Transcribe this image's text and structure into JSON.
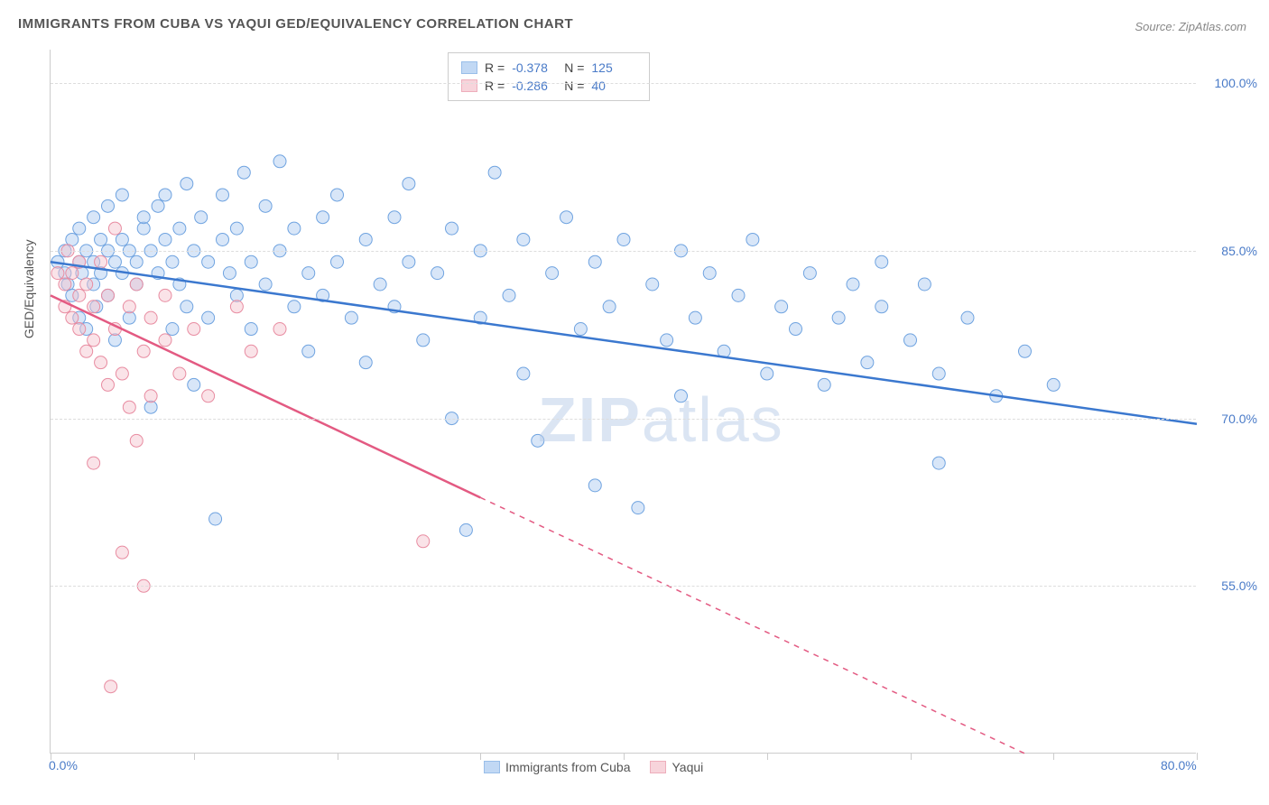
{
  "title": "IMMIGRANTS FROM CUBA VS YAQUI GED/EQUIVALENCY CORRELATION CHART",
  "source": "Source: ZipAtlas.com",
  "watermark_bold": "ZIP",
  "watermark_thin": "atlas",
  "chart": {
    "type": "scatter-with-trendlines",
    "ylabel": "GED/Equivalency",
    "background_color": "#ffffff",
    "grid_color": "#dddddd",
    "axis_color": "#cccccc",
    "tick_label_color": "#4a7bc8",
    "xlim": [
      0,
      80
    ],
    "ylim": [
      40,
      103
    ],
    "xticks": [
      0,
      10,
      20,
      30,
      40,
      50,
      60,
      70,
      80
    ],
    "xtick_labels_shown": {
      "0": "0.0%",
      "80": "80.0%"
    },
    "yticks": [
      55,
      70,
      85,
      100
    ],
    "ytick_labels": [
      "55.0%",
      "70.0%",
      "85.0%",
      "100.0%"
    ],
    "marker_radius": 7,
    "marker_opacity": 0.45,
    "line_width": 2.5,
    "series": [
      {
        "name": "Immigrants from Cuba",
        "color_fill": "#a8c8f0",
        "color_stroke": "#6fa3e0",
        "line_color": "#3b78cf",
        "R": "-0.378",
        "N": "125",
        "trend": {
          "x1": 0,
          "y1": 84,
          "x2": 80,
          "y2": 69.5,
          "solid_until_x": 80
        },
        "points": [
          [
            0.5,
            84
          ],
          [
            1,
            85
          ],
          [
            1,
            83
          ],
          [
            1.2,
            82
          ],
          [
            1.5,
            86
          ],
          [
            1.5,
            81
          ],
          [
            2,
            84
          ],
          [
            2,
            87
          ],
          [
            2,
            79
          ],
          [
            2.2,
            83
          ],
          [
            2.5,
            85
          ],
          [
            2.5,
            78
          ],
          [
            3,
            84
          ],
          [
            3,
            82
          ],
          [
            3,
            88
          ],
          [
            3.2,
            80
          ],
          [
            3.5,
            86
          ],
          [
            3.5,
            83
          ],
          [
            4,
            85
          ],
          [
            4,
            81
          ],
          [
            4,
            89
          ],
          [
            4.5,
            84
          ],
          [
            4.5,
            77
          ],
          [
            5,
            86
          ],
          [
            5,
            83
          ],
          [
            5,
            90
          ],
          [
            5.5,
            85
          ],
          [
            5.5,
            79
          ],
          [
            6,
            84
          ],
          [
            6,
            82
          ],
          [
            6.5,
            87
          ],
          [
            6.5,
            88
          ],
          [
            7,
            85
          ],
          [
            7,
            71
          ],
          [
            7.5,
            89
          ],
          [
            7.5,
            83
          ],
          [
            8,
            86
          ],
          [
            8,
            90
          ],
          [
            8.5,
            84
          ],
          [
            8.5,
            78
          ],
          [
            9,
            87
          ],
          [
            9,
            82
          ],
          [
            9.5,
            91
          ],
          [
            9.5,
            80
          ],
          [
            10,
            85
          ],
          [
            10,
            73
          ],
          [
            10.5,
            88
          ],
          [
            11,
            84
          ],
          [
            11,
            79
          ],
          [
            11.5,
            61
          ],
          [
            12,
            86
          ],
          [
            12,
            90
          ],
          [
            12.5,
            83
          ],
          [
            13,
            87
          ],
          [
            13,
            81
          ],
          [
            13.5,
            92
          ],
          [
            14,
            84
          ],
          [
            14,
            78
          ],
          [
            15,
            89
          ],
          [
            15,
            82
          ],
          [
            16,
            85
          ],
          [
            16,
            93
          ],
          [
            17,
            80
          ],
          [
            17,
            87
          ],
          [
            18,
            83
          ],
          [
            18,
            76
          ],
          [
            19,
            88
          ],
          [
            19,
            81
          ],
          [
            20,
            84
          ],
          [
            20,
            90
          ],
          [
            21,
            79
          ],
          [
            22,
            86
          ],
          [
            22,
            75
          ],
          [
            23,
            82
          ],
          [
            24,
            88
          ],
          [
            24,
            80
          ],
          [
            25,
            84
          ],
          [
            25,
            91
          ],
          [
            26,
            77
          ],
          [
            27,
            83
          ],
          [
            28,
            87
          ],
          [
            28,
            70
          ],
          [
            29,
            60
          ],
          [
            30,
            85
          ],
          [
            30,
            79
          ],
          [
            31,
            92
          ],
          [
            32,
            81
          ],
          [
            33,
            86
          ],
          [
            33,
            74
          ],
          [
            34,
            68
          ],
          [
            35,
            83
          ],
          [
            36,
            88
          ],
          [
            37,
            78
          ],
          [
            38,
            84
          ],
          [
            38,
            64
          ],
          [
            39,
            80
          ],
          [
            40,
            86
          ],
          [
            41,
            62
          ],
          [
            42,
            82
          ],
          [
            43,
            77
          ],
          [
            44,
            85
          ],
          [
            44,
            72
          ],
          [
            45,
            79
          ],
          [
            46,
            83
          ],
          [
            47,
            76
          ],
          [
            48,
            81
          ],
          [
            49,
            86
          ],
          [
            50,
            74
          ],
          [
            51,
            80
          ],
          [
            52,
            78
          ],
          [
            53,
            83
          ],
          [
            54,
            73
          ],
          [
            55,
            79
          ],
          [
            56,
            82
          ],
          [
            57,
            75
          ],
          [
            58,
            80
          ],
          [
            60,
            77
          ],
          [
            62,
            74
          ],
          [
            62,
            66
          ],
          [
            64,
            79
          ],
          [
            66,
            72
          ],
          [
            68,
            76
          ],
          [
            70,
            73
          ],
          [
            61,
            82
          ],
          [
            58,
            84
          ]
        ]
      },
      {
        "name": "Yaqui",
        "color_fill": "#f5c2cd",
        "color_stroke": "#e88ca1",
        "line_color": "#e35a82",
        "R": "-0.286",
        "N": "40",
        "trend": {
          "x1": 0,
          "y1": 81,
          "x2": 68,
          "y2": 40,
          "solid_until_x": 30
        },
        "points": [
          [
            0.5,
            83
          ],
          [
            1,
            82
          ],
          [
            1,
            80
          ],
          [
            1.2,
            85
          ],
          [
            1.5,
            79
          ],
          [
            1.5,
            83
          ],
          [
            2,
            81
          ],
          [
            2,
            78
          ],
          [
            2,
            84
          ],
          [
            2.5,
            76
          ],
          [
            2.5,
            82
          ],
          [
            3,
            80
          ],
          [
            3,
            77
          ],
          [
            3,
            66
          ],
          [
            3.5,
            84
          ],
          [
            3.5,
            75
          ],
          [
            4,
            81
          ],
          [
            4,
            73
          ],
          [
            4.5,
            78
          ],
          [
            4.5,
            87
          ],
          [
            5,
            74
          ],
          [
            5,
            58
          ],
          [
            5.5,
            80
          ],
          [
            5.5,
            71
          ],
          [
            6,
            82
          ],
          [
            6,
            68
          ],
          [
            6.5,
            76
          ],
          [
            6.5,
            55
          ],
          [
            7,
            79
          ],
          [
            7,
            72
          ],
          [
            8,
            77
          ],
          [
            8,
            81
          ],
          [
            9,
            74
          ],
          [
            10,
            78
          ],
          [
            11,
            72
          ],
          [
            13,
            80
          ],
          [
            14,
            76
          ],
          [
            16,
            78
          ],
          [
            26,
            59
          ],
          [
            4.2,
            46
          ]
        ]
      }
    ],
    "legend_top": [
      {
        "swatch_fill": "#a8c8f0",
        "swatch_stroke": "#6fa3e0",
        "R": "-0.378",
        "N": "125"
      },
      {
        "swatch_fill": "#f5c2cd",
        "swatch_stroke": "#e88ca1",
        "R": "-0.286",
        "N": "40"
      }
    ],
    "legend_bottom": [
      {
        "swatch_fill": "#a8c8f0",
        "swatch_stroke": "#6fa3e0",
        "label": "Immigrants from Cuba"
      },
      {
        "swatch_fill": "#f5c2cd",
        "swatch_stroke": "#e88ca1",
        "label": "Yaqui"
      }
    ]
  }
}
